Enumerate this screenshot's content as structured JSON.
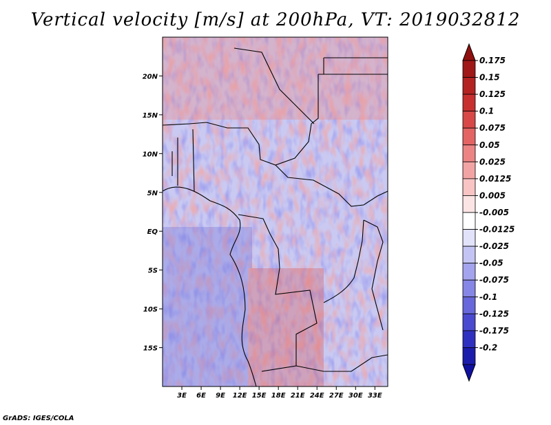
{
  "title": "Vertical velocity [m/s] at 200hPa, VT: 2019032812",
  "credit": "GrADS: IGES/COLA",
  "map": {
    "lat_range": [
      -20,
      25
    ],
    "lon_range": [
      0,
      35
    ],
    "lat_ticks": [
      {
        "value": 20,
        "label": "20N"
      },
      {
        "value": 15,
        "label": "15N"
      },
      {
        "value": 10,
        "label": "10N"
      },
      {
        "value": 5,
        "label": "5N"
      },
      {
        "value": 0,
        "label": "EQ"
      },
      {
        "value": -5,
        "label": "5S"
      },
      {
        "value": -10,
        "label": "10S"
      },
      {
        "value": -15,
        "label": "15S"
      }
    ],
    "lon_ticks": [
      {
        "value": 3,
        "label": "3E"
      },
      {
        "value": 6,
        "label": "6E"
      },
      {
        "value": 9,
        "label": "9E"
      },
      {
        "value": 12,
        "label": "12E"
      },
      {
        "value": 15,
        "label": "15E"
      },
      {
        "value": 18,
        "label": "18E"
      },
      {
        "value": 21,
        "label": "21E"
      },
      {
        "value": 24,
        "label": "24E"
      },
      {
        "value": 27,
        "label": "27E"
      },
      {
        "value": 30,
        "label": "30E"
      },
      {
        "value": 33,
        "label": "33E"
      }
    ]
  },
  "colorbar": {
    "levels": [
      {
        "label": "0.175",
        "color": "#a01818"
      },
      {
        "label": "0.15",
        "color": "#b42222"
      },
      {
        "label": "0.125",
        "color": "#c83030"
      },
      {
        "label": "0.1",
        "color": "#d84848"
      },
      {
        "label": "0.075",
        "color": "#e46464"
      },
      {
        "label": "0.05",
        "color": "#ec8484"
      },
      {
        "label": "0.025",
        "color": "#f2a4a4"
      },
      {
        "label": "0.0125",
        "color": "#f8c4c4"
      },
      {
        "label": "0.005",
        "color": "#fce4e4"
      },
      {
        "label": "-0.005",
        "color": "#ffffff"
      },
      {
        "label": "-0.0125",
        "color": "#e2e2fa"
      },
      {
        "label": "-0.025",
        "color": "#c4c4f4"
      },
      {
        "label": "-0.05",
        "color": "#a4a4ee"
      },
      {
        "label": "-0.075",
        "color": "#8686e6"
      },
      {
        "label": "-0.1",
        "color": "#6868dc"
      },
      {
        "label": "-0.125",
        "color": "#4a4ad0"
      },
      {
        "label": "-0.175",
        "color": "#3030c0"
      },
      {
        "label": "-0.2",
        "color": "#1c1cac"
      }
    ],
    "top_arrow_color": "#901010",
    "bottom_arrow_color": "#1010a0"
  }
}
